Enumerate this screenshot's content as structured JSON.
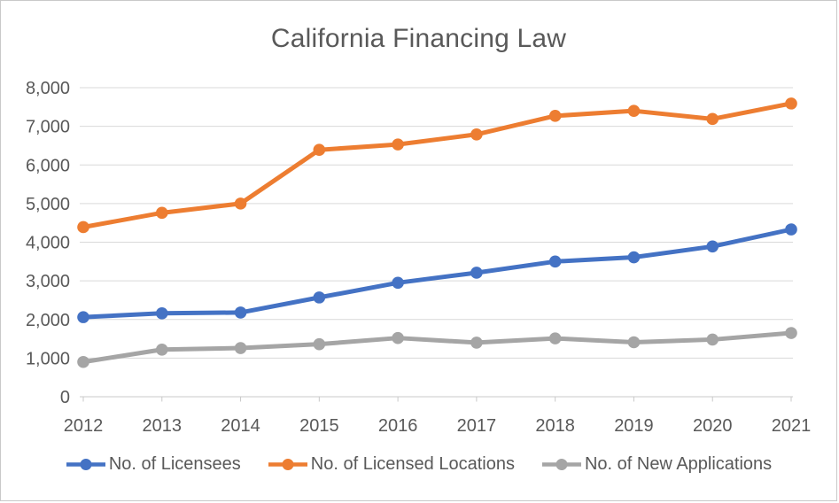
{
  "chart_data": {
    "type": "line",
    "title": "California Financing Law",
    "categories": [
      "2012",
      "2013",
      "2014",
      "2015",
      "2016",
      "2017",
      "2018",
      "2019",
      "2020",
      "2021"
    ],
    "series": [
      {
        "name": "No. of Licensees",
        "color": "#4472C4",
        "values": [
          2060,
          2160,
          2180,
          2570,
          2950,
          3210,
          3500,
          3610,
          3890,
          4330
        ]
      },
      {
        "name": "No. of Licensed Locations",
        "color": "#ED7D31",
        "values": [
          4390,
          4760,
          5000,
          6390,
          6530,
          6790,
          7270,
          7400,
          7190,
          7590
        ]
      },
      {
        "name": "No. of New Applications",
        "color": "#A5A5A5",
        "values": [
          900,
          1220,
          1260,
          1360,
          1520,
          1400,
          1510,
          1410,
          1480,
          1650
        ]
      }
    ],
    "xlabel": "",
    "ylabel": "",
    "ylim": [
      0,
      8000
    ],
    "ytick_interval": 1000,
    "ytick_labels": [
      "0",
      "1,000",
      "2,000",
      "3,000",
      "4,000",
      "5,000",
      "6,000",
      "7,000",
      "8,000"
    ],
    "grid": "horizontal",
    "legend_position": "bottom"
  },
  "colors": {
    "text": "#595959",
    "gridline": "#D9D9D9",
    "axis_line": "#C9C9C9",
    "background": "#FFFFFF",
    "frame_border": "#C9C9C9"
  }
}
